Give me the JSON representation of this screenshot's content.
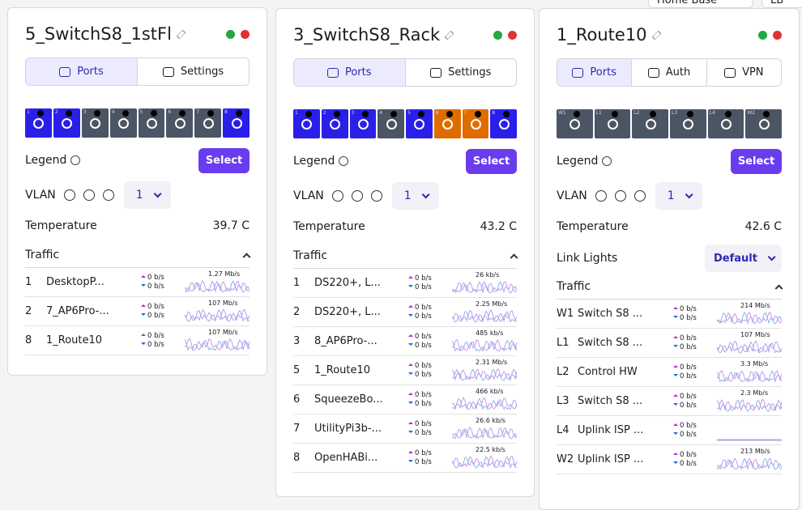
{
  "background": {
    "top_tab": "Home Base",
    "corner": "LB"
  },
  "panels": [
    {
      "title": "5_SwitchS8_1stFl",
      "tabs": [
        "Ports",
        "Settings"
      ],
      "ports": [
        {
          "label": "1",
          "color": "#2a1fe8"
        },
        {
          "label": "2",
          "color": "#2a1fe8"
        },
        {
          "label": "3",
          "color": "#4b5563"
        },
        {
          "label": "4",
          "color": "#4b5563"
        },
        {
          "label": "5",
          "color": "#4b5563"
        },
        {
          "label": "6",
          "color": "#4b5563"
        },
        {
          "label": "7",
          "color": "#4b5563"
        },
        {
          "label": "8",
          "color": "#2a1fe8"
        }
      ],
      "legend": "Legend",
      "select": "Select",
      "vlan_label": "VLAN",
      "vlan_value": "1",
      "temperature_label": "Temperature",
      "temperature": "39.7 C",
      "traffic_label": "Traffic",
      "traffic": [
        {
          "port": "1",
          "name": "DesktopP...",
          "up": "0 b/s",
          "down": "0 b/s",
          "peak": "1.27 Mb/s"
        },
        {
          "port": "2",
          "name": "7_AP6Pro-...",
          "up": "0 b/s",
          "down": "0 b/s",
          "peak": "107 Mb/s"
        },
        {
          "port": "8",
          "name": "1_Route10",
          "up": "0 b/s",
          "down": "0 b/s",
          "peak": "107 Mb/s"
        }
      ]
    },
    {
      "title": "3_SwitchS8_Rack",
      "tabs": [
        "Ports",
        "Settings"
      ],
      "ports": [
        {
          "label": "1",
          "color": "#2a1fe8"
        },
        {
          "label": "2",
          "color": "#2a1fe8"
        },
        {
          "label": "3",
          "color": "#2a1fe8"
        },
        {
          "label": "4",
          "color": "#4b5563"
        },
        {
          "label": "5",
          "color": "#2a1fe8"
        },
        {
          "label": "6",
          "color": "#e06c00"
        },
        {
          "label": "7",
          "color": "#e06c00"
        },
        {
          "label": "8",
          "color": "#2a1fe8"
        }
      ],
      "legend": "Legend",
      "select": "Select",
      "vlan_label": "VLAN",
      "vlan_value": "1",
      "temperature_label": "Temperature",
      "temperature": "43.2 C",
      "traffic_label": "Traffic",
      "traffic": [
        {
          "port": "1",
          "name": "DS220+, L...",
          "up": "0 b/s",
          "down": "0 b/s",
          "peak": "26 kb/s"
        },
        {
          "port": "2",
          "name": "DS220+, L...",
          "up": "0 b/s",
          "down": "0 b/s",
          "peak": "2.25 Mb/s"
        },
        {
          "port": "3",
          "name": "8_AP6Pro-...",
          "up": "0 b/s",
          "down": "0 b/s",
          "peak": "485 kb/s"
        },
        {
          "port": "5",
          "name": "1_Route10",
          "up": "0 b/s",
          "down": "0 b/s",
          "peak": "2.31 Mb/s"
        },
        {
          "port": "6",
          "name": "SqueezeBo...",
          "up": "0 b/s",
          "down": "0 b/s",
          "peak": "466 kb/s"
        },
        {
          "port": "7",
          "name": "UtilityPi3b-...",
          "up": "0 b/s",
          "down": "0 b/s",
          "peak": "26.6 kb/s"
        },
        {
          "port": "8",
          "name": "OpenHABi...",
          "up": "0 b/s",
          "down": "0 b/s",
          "peak": "22.5 kb/s"
        }
      ]
    },
    {
      "title": "1_Route10",
      "tabs": [
        "Ports",
        "Auth",
        "VPN"
      ],
      "ports": [
        {
          "label": "W1",
          "color": "#4b5563"
        },
        {
          "label": "L1",
          "color": "#4b5563"
        },
        {
          "label": "L2",
          "color": "#4b5563"
        },
        {
          "label": "L3",
          "color": "#4b5563"
        },
        {
          "label": "L4",
          "color": "#4b5563"
        },
        {
          "label": "W2",
          "color": "#4b5563"
        }
      ],
      "legend": "Legend",
      "select": "Select",
      "vlan_label": "VLAN",
      "vlan_value": "1",
      "temperature_label": "Temperature",
      "temperature": "42.6 C",
      "link_lights_label": "Link Lights",
      "link_lights": "Default",
      "traffic_label": "Traffic",
      "traffic": [
        {
          "port": "W1",
          "name": "Switch S8 ...",
          "up": "0 b/s",
          "down": "0 b/s",
          "peak": "214 Mb/s"
        },
        {
          "port": "L1",
          "name": "Switch S8 ...",
          "up": "0 b/s",
          "down": "0 b/s",
          "peak": "107 Mb/s"
        },
        {
          "port": "L2",
          "name": "Control HW",
          "up": "0 b/s",
          "down": "0 b/s",
          "peak": "3.3 Mb/s"
        },
        {
          "port": "L3",
          "name": "Switch S8 ...",
          "up": "0 b/s",
          "down": "0 b/s",
          "peak": "2.3 Mb/s"
        },
        {
          "port": "L4",
          "name": "Uplink ISP ...",
          "up": "0 b/s",
          "down": "0 b/s"
        },
        {
          "port": "W2",
          "name": "Uplink ISP ...",
          "up": "0 b/s",
          "down": "0 b/s",
          "peak": "213 Mb/s"
        }
      ]
    }
  ]
}
